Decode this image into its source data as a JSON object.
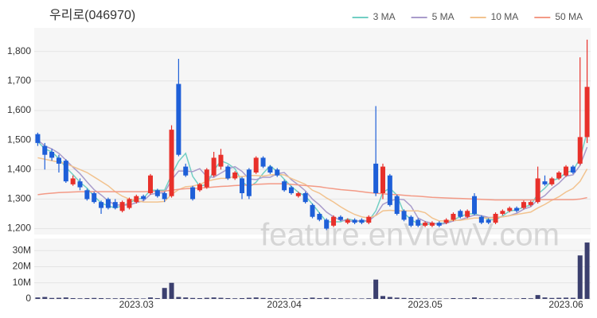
{
  "chart_data": {
    "type": "candlestick",
    "title": "우리로(046970)",
    "watermark": "feature.enViewV.com",
    "categories": [
      null,
      null,
      null,
      null,
      null,
      null,
      null,
      null,
      null,
      null,
      null,
      null,
      null,
      null,
      "2023.03",
      null,
      null,
      null,
      null,
      null,
      null,
      null,
      null,
      null,
      null,
      null,
      null,
      null,
      null,
      null,
      null,
      null,
      null,
      null,
      null,
      "2023.04",
      null,
      null,
      null,
      null,
      null,
      null,
      null,
      null,
      null,
      null,
      null,
      null,
      null,
      null,
      null,
      null,
      null,
      null,
      null,
      "2023.05",
      null,
      null,
      null,
      null,
      null,
      null,
      null,
      null,
      null,
      null,
      null,
      null,
      null,
      null,
      null,
      null,
      null,
      null,
      null,
      "2023.06",
      null,
      null,
      null
    ],
    "open": [
      1520,
      1480,
      1460,
      1440,
      1430,
      1350,
      1360,
      1330,
      1320,
      1290,
      1300,
      1290,
      1260,
      1270,
      1290,
      1310,
      1320,
      1330,
      1320,
      1310,
      1690,
      1410,
      1340,
      1330,
      1340,
      1380,
      1410,
      1410,
      1370,
      1370,
      1400,
      1390,
      1440,
      1410,
      1400,
      1360,
      1340,
      1310,
      1320,
      1280,
      1250,
      1230,
      1210,
      1240,
      1220,
      1230,
      1230,
      1220,
      1420,
      1320,
      1380,
      1310,
      1260,
      1240,
      1230,
      1210,
      1210,
      1220,
      1220,
      1230,
      1260,
      1240,
      1310,
      1240,
      1230,
      1220,
      1250,
      1260,
      1270,
      1270,
      1280,
      1290,
      1360,
      1350,
      1370,
      1380,
      1410,
      1420,
      1510
    ],
    "high": [
      1525,
      1490,
      1470,
      1450,
      1435,
      1380,
      1370,
      1335,
      1325,
      1295,
      1305,
      1300,
      1295,
      1305,
      1315,
      1315,
      1385,
      1335,
      1325,
      1550,
      1775,
      1420,
      1345,
      1355,
      1405,
      1460,
      1470,
      1415,
      1395,
      1375,
      1405,
      1445,
      1445,
      1415,
      1405,
      1365,
      1345,
      1325,
      1325,
      1285,
      1255,
      1235,
      1245,
      1245,
      1235,
      1235,
      1235,
      1245,
      1615,
      1420,
      1385,
      1315,
      1265,
      1245,
      1235,
      1225,
      1225,
      1225,
      1235,
      1255,
      1265,
      1265,
      1320,
      1245,
      1235,
      1255,
      1265,
      1275,
      1275,
      1295,
      1295,
      1410,
      1380,
      1375,
      1395,
      1415,
      1415,
      1780,
      1840
    ],
    "low": [
      1480,
      1400,
      1430,
      1390,
      1355,
      1345,
      1330,
      1295,
      1285,
      1250,
      1265,
      1265,
      1255,
      1265,
      1285,
      1295,
      1315,
      1305,
      1290,
      1305,
      1445,
      1375,
      1295,
      1325,
      1335,
      1375,
      1400,
      1365,
      1365,
      1300,
      1300,
      1385,
      1405,
      1385,
      1375,
      1325,
      1315,
      1305,
      1285,
      1235,
      1225,
      1195,
      1205,
      1225,
      1215,
      1215,
      1215,
      1215,
      1310,
      1300,
      1275,
      1245,
      1225,
      1205,
      1205,
      1205,
      1205,
      1205,
      1215,
      1225,
      1235,
      1235,
      1245,
      1215,
      1215,
      1215,
      1245,
      1255,
      1255,
      1265,
      1275,
      1285,
      1345,
      1345,
      1365,
      1375,
      1385,
      1415,
      1490
    ],
    "close": [
      1490,
      1450,
      1440,
      1420,
      1360,
      1370,
      1340,
      1300,
      1290,
      1270,
      1270,
      1270,
      1290,
      1300,
      1310,
      1300,
      1380,
      1310,
      1300,
      1535,
      1450,
      1380,
      1300,
      1350,
      1400,
      1440,
      1450,
      1370,
      1390,
      1320,
      1310,
      1440,
      1410,
      1390,
      1380,
      1330,
      1320,
      1320,
      1290,
      1240,
      1230,
      1200,
      1240,
      1230,
      1230,
      1220,
      1220,
      1240,
      1320,
      1410,
      1280,
      1250,
      1230,
      1210,
      1210,
      1220,
      1220,
      1210,
      1230,
      1250,
      1240,
      1260,
      1250,
      1220,
      1220,
      1250,
      1260,
      1270,
      1260,
      1290,
      1290,
      1370,
      1350,
      1370,
      1390,
      1410,
      1390,
      1510,
      1680
    ],
    "up_color": "#e8302a",
    "down_color": "#1e5fd8",
    "ylim": [
      1180,
      1880
    ],
    "yticks": [
      {
        "value": 1200,
        "label": "1,200"
      },
      {
        "value": 1300,
        "label": "1,300"
      },
      {
        "value": 1400,
        "label": "1,400"
      },
      {
        "value": 1500,
        "label": "1,500"
      },
      {
        "value": 1600,
        "label": "1,600"
      },
      {
        "value": 1700,
        "label": "1,700"
      },
      {
        "value": 1800,
        "label": "1,800"
      }
    ],
    "grid": true,
    "legend": "top-right",
    "series": [
      {
        "name": "3 MA",
        "color": "#72cfc4",
        "values": [
          1495,
          1470,
          1460,
          1437,
          1407,
          1383,
          1357,
          1337,
          1310,
          1287,
          1277,
          1270,
          1277,
          1287,
          1300,
          1303,
          1330,
          1330,
          1330,
          1382,
          1428,
          1455,
          1377,
          1343,
          1350,
          1397,
          1430,
          1420,
          1403,
          1360,
          1340,
          1357,
          1387,
          1413,
          1393,
          1367,
          1343,
          1323,
          1310,
          1283,
          1253,
          1223,
          1223,
          1223,
          1233,
          1227,
          1223,
          1227,
          1260,
          1323,
          1337,
          1313,
          1253,
          1230,
          1217,
          1213,
          1217,
          1217,
          1220,
          1230,
          1240,
          1250,
          1250,
          1243,
          1230,
          1230,
          1243,
          1260,
          1263,
          1273,
          1280,
          1317,
          1337,
          1363,
          1370,
          1390,
          1397,
          1437,
          1527
        ]
      },
      {
        "name": "5 MA",
        "color": "#a99ccb",
        "values": [
          1500,
          1480,
          1470,
          1455,
          1432,
          1408,
          1386,
          1358,
          1332,
          1314,
          1294,
          1280,
          1280,
          1280,
          1288,
          1294,
          1316,
          1320,
          1322,
          1365,
          1395,
          1395,
          1393,
          1403,
          1376,
          1374,
          1388,
          1402,
          1410,
          1394,
          1368,
          1366,
          1374,
          1374,
          1386,
          1390,
          1366,
          1348,
          1328,
          1300,
          1280,
          1256,
          1240,
          1228,
          1226,
          1224,
          1228,
          1226,
          1246,
          1282,
          1294,
          1300,
          1298,
          1276,
          1236,
          1224,
          1218,
          1214,
          1218,
          1226,
          1230,
          1238,
          1246,
          1244,
          1238,
          1238,
          1240,
          1244,
          1252,
          1266,
          1274,
          1298,
          1312,
          1336,
          1354,
          1378,
          1382,
          1414,
          1476
        ]
      },
      {
        "name": "10 MA",
        "color": "#f2c38f",
        "values": [
          1440,
          1435,
          1430,
          1425,
          1420,
          1410,
          1400,
          1390,
          1375,
          1360,
          1345,
          1325,
          1310,
          1300,
          1295,
          1290,
          1290,
          1290,
          1292,
          1316,
          1332,
          1342,
          1344,
          1350,
          1360,
          1366,
          1370,
          1370,
          1378,
          1376,
          1380,
          1380,
          1378,
          1382,
          1384,
          1382,
          1370,
          1360,
          1350,
          1330,
          1320,
          1304,
          1290,
          1274,
          1260,
          1248,
          1240,
          1236,
          1244,
          1260,
          1262,
          1260,
          1260,
          1260,
          1260,
          1254,
          1236,
          1226,
          1226,
          1228,
          1228,
          1232,
          1236,
          1236,
          1236,
          1238,
          1240,
          1244,
          1248,
          1252,
          1256,
          1270,
          1282,
          1296,
          1308,
          1324,
          1336,
          1360,
          1402
        ]
      },
      {
        "name": "50 MA",
        "color": "#f39a86",
        "values": [
          1315,
          1318,
          1320,
          1322,
          1323,
          1324,
          1325,
          1325,
          1325,
          1325,
          1325,
          1325,
          1325,
          1325,
          1325,
          1325,
          1326,
          1326,
          1327,
          1330,
          1333,
          1335,
          1336,
          1337,
          1339,
          1341,
          1343,
          1344,
          1346,
          1347,
          1348,
          1350,
          1351,
          1352,
          1352,
          1352,
          1350,
          1348,
          1346,
          1344,
          1342,
          1338,
          1335,
          1332,
          1330,
          1328,
          1325,
          1322,
          1320,
          1318,
          1316,
          1315,
          1313,
          1311,
          1310,
          1308,
          1306,
          1305,
          1304,
          1303,
          1302,
          1301,
          1300,
          1299,
          1298,
          1297,
          1297,
          1297,
          1297,
          1297,
          1297,
          1298,
          1298,
          1298,
          1298,
          1298,
          1298,
          1300,
          1305
        ]
      }
    ],
    "volume": {
      "color": "#3b3f6e",
      "values": [
        900000,
        1200000,
        600000,
        700000,
        900000,
        500000,
        400000,
        500000,
        600000,
        500000,
        400000,
        400000,
        500000,
        400000,
        400000,
        300000,
        900000,
        500000,
        6800000,
        10000000,
        1200000,
        900000,
        600000,
        500000,
        700000,
        900000,
        700000,
        500000,
        400000,
        500000,
        700000,
        900000,
        600000,
        500000,
        400000,
        400000,
        400000,
        300000,
        500000,
        800000,
        500000,
        700000,
        400000,
        400000,
        300000,
        300000,
        300000,
        400000,
        12000000,
        1800000,
        1200000,
        800000,
        600000,
        500000,
        400000,
        300000,
        300000,
        300000,
        300000,
        500000,
        400000,
        400000,
        900000,
        500000,
        300000,
        400000,
        400000,
        300000,
        300000,
        500000,
        400000,
        2400000,
        900000,
        600000,
        700000,
        800000,
        700000,
        27000000,
        35000000
      ],
      "ylim": [
        0,
        37500000
      ],
      "yticks": [
        0,
        {
          "value": 10000000,
          "label": "10M"
        },
        {
          "value": 20000000,
          "label": "20M"
        },
        {
          "value": 30000000,
          "label": "30M"
        }
      ]
    }
  }
}
